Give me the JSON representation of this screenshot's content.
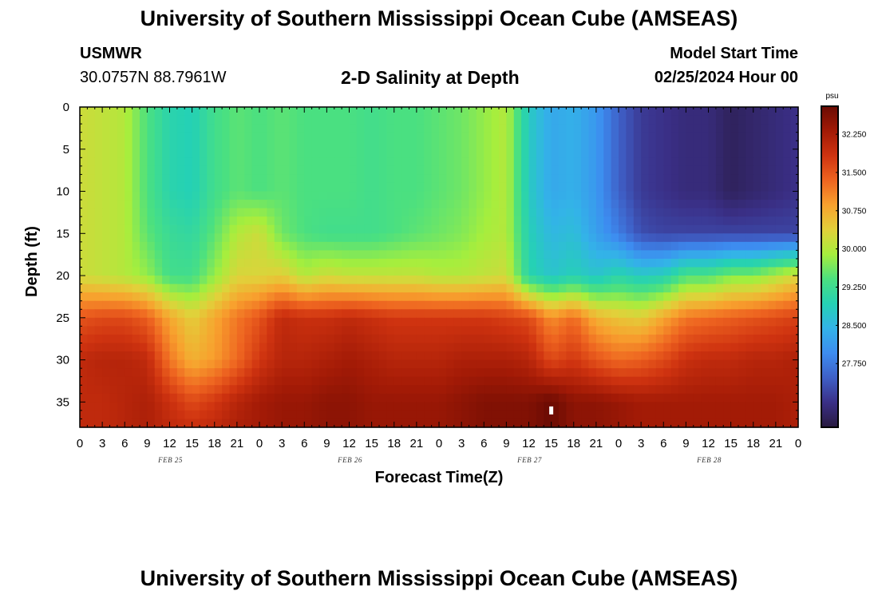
{
  "header": {
    "title": "University of Southern Mississippi Ocean Cube (AMSEAS)",
    "station_name": "USMWR",
    "station_coords": "30.0757N  88.7961W",
    "plot_title": "2-D Salinity at Depth",
    "run_label": "Model Start Time",
    "run_time": "02/25/2024 Hour 00"
  },
  "footer": {
    "title": "University of Southern Mississippi Ocean Cube (AMSEAS)"
  },
  "chart_data": {
    "type": "heatmap",
    "title": "2-D Salinity at Depth",
    "xlabel": "Forecast Time(Z)",
    "ylabel": "Depth (ft)",
    "x_unit": "forecast hours since 02/25/2024 00Z",
    "xlim": [
      0,
      96
    ],
    "ylim": [
      38,
      0
    ],
    "x_ticks": [
      0,
      3,
      6,
      9,
      12,
      15,
      18,
      21,
      24,
      27,
      30,
      33,
      36,
      39,
      42,
      45,
      48,
      51,
      54,
      57,
      60,
      63,
      66,
      69,
      72,
      75,
      78,
      81,
      84,
      87,
      90,
      93,
      96
    ],
    "x_tick_labels": [
      "0",
      "3",
      "6",
      "9",
      "12",
      "15",
      "18",
      "21",
      "0",
      "3",
      "6",
      "9",
      "12",
      "15",
      "18",
      "21",
      "0",
      "3",
      "6",
      "9",
      "12",
      "15",
      "18",
      "21",
      "0",
      "3",
      "6",
      "9",
      "12",
      "15",
      "18",
      "21",
      "0"
    ],
    "y_ticks": [
      0,
      5,
      10,
      15,
      20,
      25,
      30,
      35
    ],
    "y_tick_labels": [
      "0",
      "5",
      "10",
      "15",
      "20",
      "25",
      "30",
      "35"
    ],
    "day_labels": [
      {
        "hour": 12,
        "label": "FEB 25"
      },
      {
        "hour": 36,
        "label": "FEB 26"
      },
      {
        "hour": 60,
        "label": "FEB 27"
      },
      {
        "hour": 84,
        "label": "FEB 28"
      }
    ],
    "colorbar": {
      "unit": "psu",
      "range": [
        26.5,
        32.8
      ],
      "ticks": [
        32.25,
        31.5,
        30.75,
        30.0,
        29.25,
        28.5,
        27.75
      ],
      "tick_labels": [
        "32.250",
        "31.500",
        "30.750",
        "30.000",
        "29.250",
        "28.500",
        "27.750"
      ],
      "colors": [
        "#281a3f",
        "#3a2f86",
        "#3e5fc6",
        "#3d8cf0",
        "#33b3e8",
        "#25d1b4",
        "#4be080",
        "#a6ee3d",
        "#e2d03a",
        "#f8a12e",
        "#ee6420",
        "#cf3310",
        "#a21a06",
        "#6a0b03"
      ]
    },
    "depth_levels_ft": [
      0,
      5,
      10,
      15,
      20,
      25,
      30,
      35,
      38
    ],
    "hours": [
      0,
      3,
      6,
      9,
      12,
      15,
      18,
      21,
      24,
      27,
      30,
      33,
      36,
      39,
      42,
      45,
      48,
      51,
      54,
      57,
      60,
      63,
      66,
      69,
      72,
      75,
      78,
      81,
      84,
      87,
      90,
      93,
      96
    ],
    "salinity_psu": [
      [
        30.2,
        30.1,
        30.0,
        29.4,
        29.0,
        28.9,
        29.3,
        29.5,
        29.4,
        29.5,
        29.4,
        29.4,
        29.4,
        29.3,
        29.4,
        29.4,
        29.5,
        29.6,
        29.8,
        30.0,
        28.8,
        28.3,
        28.4,
        28.1,
        27.5,
        27.1,
        27.0,
        26.9,
        26.9,
        26.7,
        26.8,
        26.9,
        27.0
      ],
      [
        30.2,
        30.1,
        30.0,
        29.4,
        29.0,
        28.9,
        29.3,
        29.5,
        29.4,
        29.5,
        29.4,
        29.4,
        29.4,
        29.3,
        29.4,
        29.4,
        29.5,
        29.6,
        29.8,
        30.0,
        28.8,
        28.3,
        28.4,
        28.1,
        27.5,
        27.1,
        27.0,
        26.9,
        26.9,
        26.7,
        26.8,
        26.9,
        27.0
      ],
      [
        30.2,
        30.1,
        30.0,
        29.4,
        29.0,
        28.9,
        29.3,
        29.5,
        29.4,
        29.5,
        29.4,
        29.4,
        29.4,
        29.3,
        29.4,
        29.4,
        29.5,
        29.6,
        29.8,
        30.0,
        28.8,
        28.3,
        28.4,
        28.1,
        27.5,
        27.1,
        27.0,
        26.9,
        26.9,
        26.7,
        26.8,
        26.9,
        27.0
      ],
      [
        30.2,
        30.1,
        30.0,
        29.5,
        29.2,
        29.1,
        29.5,
        30.0,
        30.2,
        29.6,
        29.4,
        29.3,
        29.3,
        29.3,
        29.4,
        29.5,
        29.6,
        29.7,
        29.9,
        30.0,
        28.9,
        28.5,
        28.6,
        28.2,
        27.8,
        27.3,
        27.2,
        27.2,
        27.2,
        27.2,
        27.2,
        27.2,
        27.2
      ],
      [
        30.2,
        30.1,
        30.0,
        29.8,
        29.3,
        29.3,
        29.8,
        30.3,
        30.3,
        30.4,
        30.0,
        30.2,
        30.1,
        30.1,
        30.1,
        30.1,
        30.0,
        30.0,
        30.1,
        30.2,
        29.0,
        28.7,
        28.9,
        28.7,
        29.0,
        28.8,
        28.9,
        29.4,
        29.4,
        29.7,
        29.7,
        30.0,
        30.3
      ],
      [
        31.5,
        31.6,
        31.6,
        31.4,
        30.8,
        30.4,
        30.8,
        31.2,
        31.5,
        32.0,
        31.9,
        31.9,
        32.0,
        31.9,
        31.8,
        31.8,
        31.8,
        31.8,
        31.8,
        31.7,
        31.6,
        31.0,
        31.3,
        30.7,
        30.5,
        30.4,
        30.8,
        31.2,
        31.3,
        31.4,
        31.5,
        31.6,
        31.7
      ],
      [
        32.0,
        32.1,
        32.1,
        32.0,
        31.2,
        30.7,
        30.9,
        31.3,
        31.8,
        32.1,
        32.1,
        32.2,
        32.3,
        32.2,
        32.1,
        32.1,
        32.1,
        32.2,
        32.2,
        32.2,
        32.1,
        31.6,
        31.8,
        31.5,
        31.3,
        31.4,
        31.6,
        31.9,
        32.0,
        32.0,
        32.1,
        32.1,
        32.2
      ],
      [
        32.0,
        32.0,
        32.1,
        32.2,
        31.9,
        31.6,
        31.8,
        32.1,
        32.3,
        32.4,
        32.4,
        32.5,
        32.5,
        32.4,
        32.4,
        32.4,
        32.4,
        32.5,
        32.6,
        32.6,
        32.6,
        32.8,
        32.5,
        32.5,
        32.4,
        32.3,
        32.3,
        32.3,
        32.3,
        32.3,
        32.3,
        32.3,
        32.2
      ],
      [
        32.0,
        32.0,
        32.1,
        32.2,
        32.0,
        31.9,
        32.0,
        32.2,
        32.3,
        32.4,
        32.4,
        32.5,
        32.5,
        32.4,
        32.4,
        32.4,
        32.4,
        32.5,
        32.6,
        32.6,
        32.6,
        32.8,
        32.5,
        32.5,
        32.4,
        32.3,
        32.3,
        32.3,
        32.3,
        32.3,
        32.3,
        32.3,
        32.2
      ]
    ],
    "missing_point": {
      "hour": 63,
      "depth_ft": 36
    }
  }
}
